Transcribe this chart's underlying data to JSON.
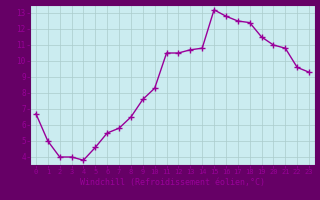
{
  "x": [
    0,
    1,
    2,
    3,
    4,
    5,
    6,
    7,
    8,
    9,
    10,
    11,
    12,
    13,
    14,
    15,
    16,
    17,
    18,
    19,
    20,
    21,
    22,
    23
  ],
  "y": [
    6.7,
    5.0,
    4.0,
    4.0,
    3.8,
    4.6,
    5.5,
    5.8,
    6.5,
    7.6,
    8.3,
    10.5,
    10.5,
    10.7,
    10.8,
    13.2,
    12.8,
    12.5,
    12.4,
    11.5,
    11.0,
    10.8,
    9.6,
    9.3
  ],
  "line_color": "#990099",
  "marker": "+",
  "marker_size": 4,
  "line_width": 1.0,
  "xlabel": "Windchill (Refroidissement éolien,°C)",
  "xlim": [
    -0.5,
    23.5
  ],
  "ylim": [
    3.5,
    13.5
  ],
  "yticks": [
    4,
    5,
    6,
    7,
    8,
    9,
    10,
    11,
    12,
    13
  ],
  "xticks": [
    0,
    1,
    2,
    3,
    4,
    5,
    6,
    7,
    8,
    9,
    10,
    11,
    12,
    13,
    14,
    15,
    16,
    17,
    18,
    19,
    20,
    21,
    22,
    23
  ],
  "bg_color": "#cbecf0",
  "grid_color": "#aacccc",
  "tick_color": "#990099",
  "label_color": "#990099",
  "outer_bg": "#660066"
}
